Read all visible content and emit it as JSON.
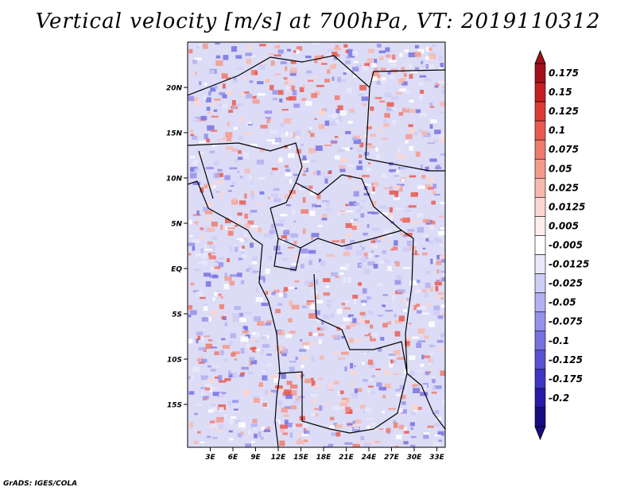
{
  "title": "Vertical velocity [m/s] at 700hPa, VT: 2019110312",
  "credit": "GrADS: IGES/COLA",
  "map": {
    "lat_ticks": [
      "20N",
      "15N",
      "10N",
      "5N",
      "EQ",
      "5S",
      "10S",
      "15S"
    ],
    "lon_ticks": [
      "3E",
      "6E",
      "9E",
      "12E",
      "15E",
      "18E",
      "21E",
      "24E",
      "27E",
      "30E",
      "33E"
    ]
  },
  "colorbar": {
    "labels": [
      "0.175",
      "0.15",
      "0.125",
      "0.1",
      "0.075",
      "0.05",
      "0.025",
      "0.0125",
      "0.005",
      "-0.005",
      "-0.0125",
      "-0.025",
      "-0.05",
      "-0.075",
      "-0.1",
      "-0.125",
      "-0.175",
      "-0.2"
    ],
    "colors": [
      "#a1101c",
      "#c42022",
      "#dc3b35",
      "#e85a50",
      "#ef7a6e",
      "#f39a8d",
      "#f7b8ae",
      "#fbd6d0",
      "#fdeeeb",
      "#ffffff",
      "#e9e8fb",
      "#cfcdf6",
      "#b3b0f0",
      "#9591ea",
      "#7772e0",
      "#5a52d4",
      "#3f35c3",
      "#2a1aa6",
      "#1a0b80"
    ]
  }
}
